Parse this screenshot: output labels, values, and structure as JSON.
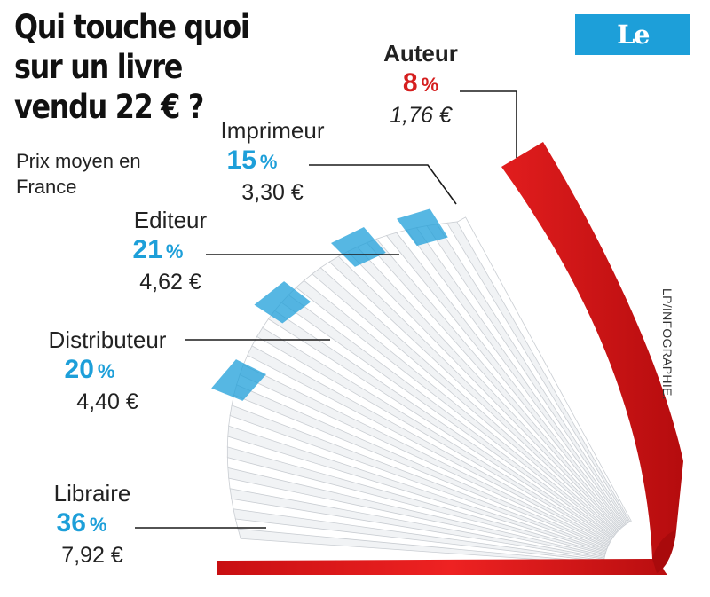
{
  "header": {
    "title": "Qui touche quoi sur un livre vendu 22 € ?",
    "subtitle": "Prix moyen en France",
    "logo": "Le Parisien",
    "credit": "LP/INFOGRAPHIE."
  },
  "colors": {
    "accent": "#1d9fd9",
    "author": "#d51f1f",
    "cover": "#e01616"
  },
  "chart_data": {
    "type": "pie",
    "title": "Qui touche quoi sur un livre vendu 22 € ?",
    "subtitle": "Prix moyen en France",
    "total": 22,
    "slices": [
      {
        "label": "Auteur",
        "percent": 8,
        "percent_text": "8",
        "sign": "%",
        "amount_text": "1,76 €",
        "amount": 1.76
      },
      {
        "label": "Imprimeur",
        "percent": 15,
        "percent_text": "15",
        "sign": "%",
        "amount_text": "3,30 €",
        "amount": 3.3
      },
      {
        "label": "Editeur",
        "percent": 21,
        "percent_text": "21",
        "sign": "%",
        "amount_text": "4,62 €",
        "amount": 4.62
      },
      {
        "label": "Distributeur",
        "percent": 20,
        "percent_text": "20",
        "sign": "%",
        "amount_text": "4,40 €",
        "amount": 4.4
      },
      {
        "label": "Libraire",
        "percent": 36,
        "percent_text": "36",
        "sign": "%",
        "amount_text": "7,92 €",
        "amount": 7.92
      }
    ]
  }
}
